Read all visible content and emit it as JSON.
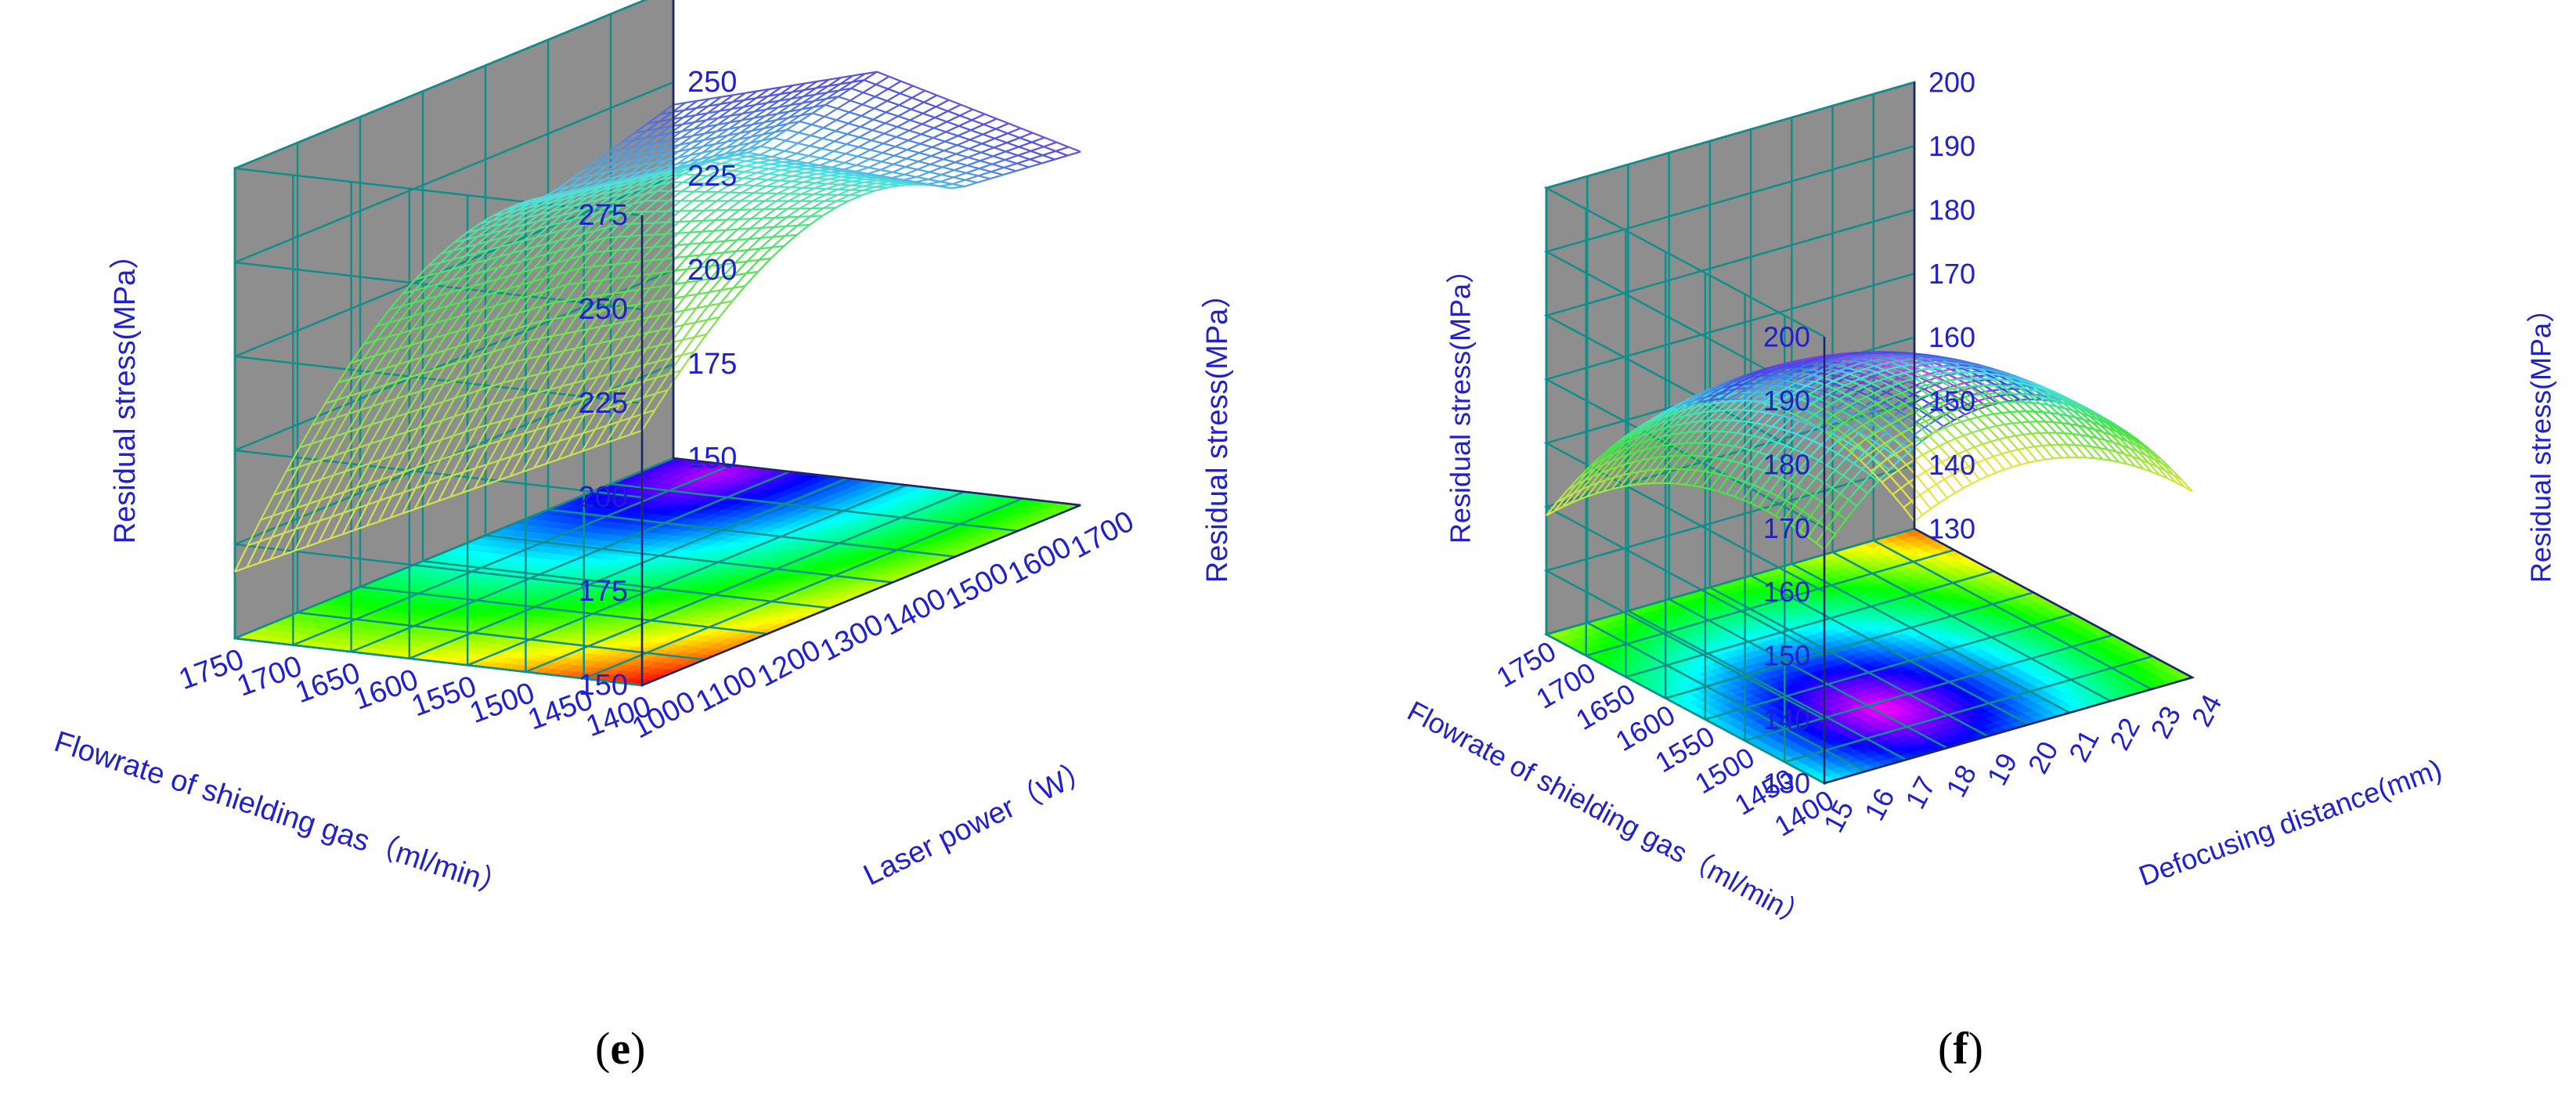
{
  "chart_data": [
    {
      "type": "surface3d",
      "panel_label": "e",
      "zlabel": "Residual stress(MPa）",
      "xlabel": "Laser power（W）",
      "ylabel": "Flowrate of shielding gas（ml/min）",
      "x_ticks": [
        1000,
        1100,
        1200,
        1300,
        1400,
        1500,
        1600,
        1700
      ],
      "y_ticks": [
        1400,
        1450,
        1500,
        1550,
        1600,
        1650,
        1700,
        1750
      ],
      "z_ticks": [
        150,
        175,
        200,
        225,
        250,
        275
      ],
      "xlim": [
        1000,
        1700
      ],
      "ylim": [
        1400,
        1750
      ],
      "zlim": [
        150,
        275
      ],
      "surface_samples": [
        {
          "x": 1000,
          "y": 1400,
          "z": 188
        },
        {
          "x": 1000,
          "y": 1750,
          "z": 150
        },
        {
          "x": 1700,
          "y": 1400,
          "z": 258
        },
        {
          "x": 1700,
          "y": 1750,
          "z": 248
        },
        {
          "x": 1500,
          "y": 1600,
          "z": 265
        }
      ]
    },
    {
      "type": "surface3d",
      "panel_label": "f",
      "zlabel": "Residual stress(MPa）",
      "xlabel": "Defocusing distance(mm)",
      "ylabel": "Flowrate of shielding gas（ml/min）",
      "x_ticks": [
        15,
        16,
        17,
        18,
        19,
        20,
        21,
        22,
        23,
        24
      ],
      "y_ticks": [
        1400,
        1450,
        1500,
        1550,
        1600,
        1650,
        1700,
        1750
      ],
      "z_ticks": [
        130,
        140,
        150,
        160,
        170,
        180,
        190,
        200
      ],
      "xlim": [
        15,
        24
      ],
      "ylim": [
        1400,
        1750
      ],
      "zlim": [
        130,
        200
      ],
      "surface_samples": [
        {
          "x": 15,
          "y": 1750,
          "z": 151
        },
        {
          "x": 15,
          "y": 1400,
          "z": 182
        },
        {
          "x": 24,
          "y": 1750,
          "z": 140
        },
        {
          "x": 24,
          "y": 1400,
          "z": 180
        },
        {
          "x": 19,
          "y": 1550,
          "z": 183
        }
      ]
    }
  ],
  "colors": {
    "axis_text": "#2020cc",
    "wall": "#c4c4c4",
    "wall_dark": "#8e8e8e",
    "grid": "#0f8f8a",
    "frame": "#222266"
  }
}
